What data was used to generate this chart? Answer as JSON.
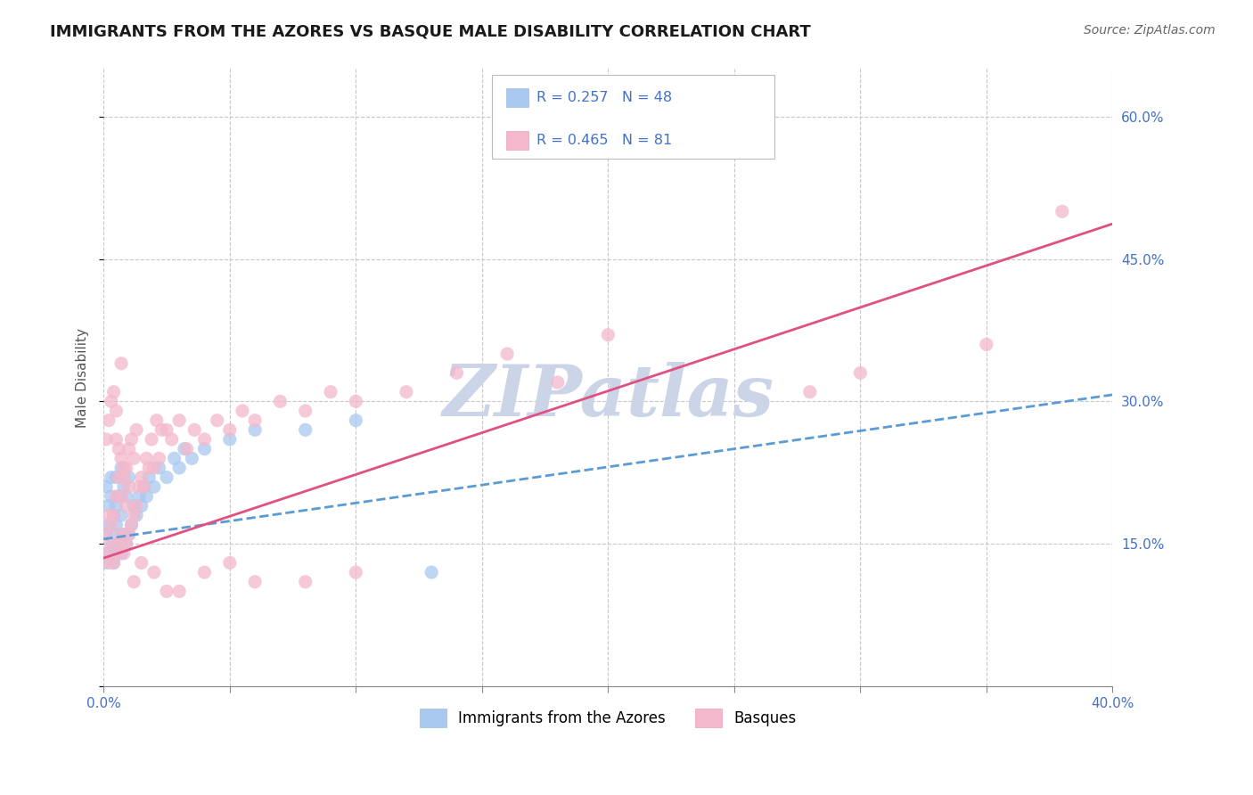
{
  "title": "IMMIGRANTS FROM THE AZORES VS BASQUE MALE DISABILITY CORRELATION CHART",
  "source_text": "Source: ZipAtlas.com",
  "ylabel": "Male Disability",
  "series": [
    {
      "name": "Immigrants from the Azores",
      "R": 0.257,
      "N": 48,
      "color": "#a8c8f0",
      "line_color": "#5b9bd5",
      "line_style": "--",
      "x": [
        0.0,
        0.001,
        0.001,
        0.002,
        0.002,
        0.003,
        0.003,
        0.004,
        0.004,
        0.005,
        0.005,
        0.005,
        0.006,
        0.006,
        0.007,
        0.007,
        0.007,
        0.008,
        0.008,
        0.009,
        0.009,
        0.01,
        0.01,
        0.011,
        0.012,
        0.013,
        0.014,
        0.015,
        0.016,
        0.017,
        0.018,
        0.02,
        0.022,
        0.025,
        0.028,
        0.03,
        0.032,
        0.035,
        0.04,
        0.05,
        0.06,
        0.08,
        0.1,
        0.13,
        0.002,
        0.003,
        0.004,
        0.005
      ],
      "y": [
        0.13,
        0.16,
        0.21,
        0.14,
        0.19,
        0.15,
        0.22,
        0.13,
        0.18,
        0.14,
        0.17,
        0.22,
        0.15,
        0.2,
        0.14,
        0.18,
        0.23,
        0.16,
        0.21,
        0.15,
        0.2,
        0.16,
        0.22,
        0.17,
        0.19,
        0.18,
        0.2,
        0.19,
        0.21,
        0.2,
        0.22,
        0.21,
        0.23,
        0.22,
        0.24,
        0.23,
        0.25,
        0.24,
        0.25,
        0.26,
        0.27,
        0.27,
        0.28,
        0.12,
        0.17,
        0.2,
        0.16,
        0.19
      ]
    },
    {
      "name": "Basques",
      "R": 0.465,
      "N": 81,
      "color": "#f4b8cc",
      "line_color": "#e05080",
      "line_style": "-",
      "x": [
        0.0,
        0.001,
        0.001,
        0.002,
        0.002,
        0.002,
        0.003,
        0.003,
        0.003,
        0.004,
        0.004,
        0.004,
        0.005,
        0.005,
        0.005,
        0.006,
        0.006,
        0.007,
        0.007,
        0.007,
        0.008,
        0.008,
        0.009,
        0.009,
        0.01,
        0.01,
        0.011,
        0.011,
        0.012,
        0.012,
        0.013,
        0.013,
        0.014,
        0.015,
        0.016,
        0.017,
        0.018,
        0.019,
        0.02,
        0.021,
        0.022,
        0.023,
        0.025,
        0.027,
        0.03,
        0.033,
        0.036,
        0.04,
        0.045,
        0.05,
        0.055,
        0.06,
        0.07,
        0.08,
        0.09,
        0.1,
        0.12,
        0.14,
        0.16,
        0.18,
        0.2,
        0.005,
        0.006,
        0.007,
        0.008,
        0.009,
        0.01,
        0.012,
        0.015,
        0.02,
        0.025,
        0.03,
        0.04,
        0.05,
        0.06,
        0.08,
        0.1,
        0.28,
        0.3,
        0.35,
        0.38
      ],
      "y": [
        0.14,
        0.16,
        0.26,
        0.13,
        0.18,
        0.28,
        0.15,
        0.17,
        0.3,
        0.13,
        0.18,
        0.31,
        0.14,
        0.2,
        0.26,
        0.15,
        0.22,
        0.16,
        0.24,
        0.34,
        0.14,
        0.22,
        0.15,
        0.23,
        0.16,
        0.25,
        0.17,
        0.26,
        0.18,
        0.24,
        0.19,
        0.27,
        0.21,
        0.22,
        0.21,
        0.24,
        0.23,
        0.26,
        0.23,
        0.28,
        0.24,
        0.27,
        0.27,
        0.26,
        0.28,
        0.25,
        0.27,
        0.26,
        0.28,
        0.27,
        0.29,
        0.28,
        0.3,
        0.29,
        0.31,
        0.3,
        0.31,
        0.33,
        0.35,
        0.32,
        0.37,
        0.29,
        0.25,
        0.2,
        0.23,
        0.19,
        0.21,
        0.11,
        0.13,
        0.12,
        0.1,
        0.1,
        0.12,
        0.13,
        0.11,
        0.11,
        0.12,
        0.31,
        0.33,
        0.36,
        0.5
      ]
    }
  ],
  "xlim": [
    0.0,
    0.4
  ],
  "ylim": [
    0.0,
    0.65
  ],
  "yticks": [
    0.0,
    0.15,
    0.3,
    0.45,
    0.6
  ],
  "ytick_labels": [
    "",
    "15.0%",
    "30.0%",
    "45.0%",
    "60.0%"
  ],
  "xticks": [
    0.0,
    0.05,
    0.1,
    0.15,
    0.2,
    0.25,
    0.3,
    0.35,
    0.4
  ],
  "xtick_labels": [
    "0.0%",
    "",
    "",
    "",
    "",
    "",
    "",
    "",
    "40.0%"
  ],
  "grid_color": "#c8c8c8",
  "background_color": "#ffffff",
  "watermark_text": "ZIPatlas",
  "watermark_color": "#ccd5e8",
  "title_fontsize": 13,
  "label_fontsize": 11,
  "tick_fontsize": 11,
  "source_fontsize": 10,
  "legend_text_color": "#4472c4",
  "azores_line_intercept": 0.155,
  "azores_line_slope": 0.38,
  "basque_line_intercept": 0.135,
  "basque_line_slope": 0.88
}
